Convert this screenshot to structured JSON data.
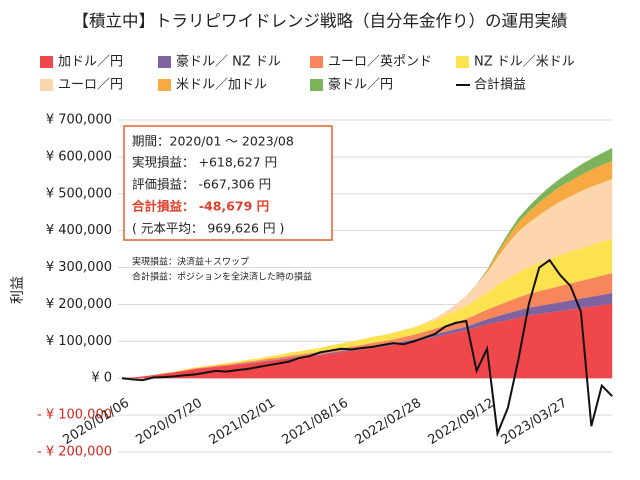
{
  "chart_data": {
    "type": "area",
    "title": "【積立中】トラリピワイドレンジ戦略（自分年金作り）の運用実績",
    "y_label": "利益",
    "categories": [
      "2020/01/06",
      null,
      null,
      null,
      null,
      null,
      null,
      "2020/07/20",
      null,
      null,
      null,
      null,
      null,
      null,
      "2021/02/01",
      null,
      null,
      null,
      null,
      null,
      null,
      "2021/08/16",
      null,
      null,
      null,
      null,
      null,
      null,
      "2022/02/28",
      null,
      null,
      null,
      null,
      null,
      null,
      "2022/09/12",
      null,
      null,
      null,
      null,
      null,
      null,
      "2023/03/27",
      null,
      null,
      null,
      null,
      null
    ],
    "ylim": [
      -200000,
      700000
    ],
    "yticks": [
      {
        "value": -200000,
        "label": "- ¥ 200,000"
      },
      {
        "value": -100000,
        "label": "- ¥ 100,000"
      },
      {
        "value": 0,
        "label": "¥ 0"
      },
      {
        "value": 100000,
        "label": "¥ 100,000"
      },
      {
        "value": 200000,
        "label": "¥ 200,000"
      },
      {
        "value": 300000,
        "label": "¥ 300,000"
      },
      {
        "value": 400000,
        "label": "¥ 400,000"
      },
      {
        "value": 500000,
        "label": "¥ 500,000"
      },
      {
        "value": 600000,
        "label": "¥ 600,000"
      },
      {
        "value": 700000,
        "label": "¥ 700,000"
      }
    ],
    "grid": true,
    "series": [
      {
        "name": "加ドル／円",
        "color": "#f0474b",
        "values": [
          0,
          2000,
          5000,
          8000,
          12000,
          16000,
          20000,
          25000,
          28000,
          31000,
          34000,
          37000,
          40000,
          43000,
          47000,
          50000,
          53000,
          56000,
          59000,
          62000,
          66000,
          70000,
          74000,
          78000,
          82000,
          86000,
          90000,
          95000,
          100000,
          106000,
          112000,
          118000,
          124000,
          130000,
          138000,
          146000,
          152000,
          158000,
          164000,
          170000,
          174000,
          178000,
          182000,
          186000,
          190000,
          194000,
          198000,
          202000
        ]
      },
      {
        "name": "豪ドル／ NZ ドル",
        "color": "#7f63a1",
        "values": [
          0,
          0,
          0,
          0,
          0,
          0,
          0,
          0,
          0,
          0,
          0,
          1000,
          1000,
          1000,
          1000,
          1000,
          2000,
          2000,
          2000,
          2000,
          3000,
          3000,
          3000,
          3000,
          4000,
          4000,
          4000,
          5000,
          5000,
          6000,
          7000,
          8000,
          9000,
          10000,
          12000,
          14000,
          16000,
          18000,
          20000,
          21000,
          22000,
          23000,
          24000,
          25000,
          26000,
          27000,
          28000,
          29000
        ]
      },
      {
        "name": "ユーロ／英ポンド",
        "color": "#f7865a",
        "values": [
          0,
          0,
          0,
          1000,
          1000,
          1000,
          2000,
          2000,
          2000,
          3000,
          3000,
          3000,
          4000,
          4000,
          5000,
          5000,
          6000,
          6000,
          7000,
          7000,
          8000,
          8000,
          9000,
          9000,
          10000,
          10000,
          11000,
          12000,
          13000,
          14000,
          15000,
          17000,
          19000,
          21000,
          23000,
          26000,
          29000,
          32000,
          35000,
          38000,
          40000,
          42000,
          44000,
          46000,
          48000,
          50000,
          52000,
          54000
        ]
      },
      {
        "name": "NZ ドル／米ドル",
        "color": "#fde24f",
        "values": [
          0,
          0,
          0,
          0,
          1000,
          1000,
          2000,
          2000,
          3000,
          3000,
          4000,
          4000,
          5000,
          5000,
          6000,
          7000,
          8000,
          9000,
          10000,
          11000,
          12000,
          13000,
          14000,
          15000,
          16000,
          17000,
          18000,
          19000,
          20000,
          22000,
          24000,
          27000,
          30000,
          35000,
          40000,
          45000,
          55000,
          62000,
          68000,
          72000,
          76000,
          80000,
          84000,
          86000,
          88000,
          90000,
          92000,
          93000
        ]
      },
      {
        "name": "ユーロ／円",
        "color": "#fdd6ae",
        "values": [
          0,
          0,
          0,
          0,
          0,
          0,
          0,
          0,
          0,
          0,
          0,
          0,
          0,
          0,
          0,
          0,
          0,
          0,
          0,
          0,
          0,
          0,
          0,
          0,
          0,
          0,
          0,
          0,
          0,
          2000,
          5000,
          10000,
          18000,
          28000,
          40000,
          55000,
          75000,
          95000,
          110000,
          120000,
          130000,
          138000,
          145000,
          150000,
          155000,
          158000,
          160000,
          162000
        ]
      },
      {
        "name": "米ドル／加ドル",
        "color": "#f8aa42",
        "values": [
          0,
          0,
          0,
          0,
          0,
          0,
          0,
          0,
          0,
          0,
          0,
          0,
          0,
          0,
          0,
          0,
          0,
          0,
          0,
          0,
          0,
          0,
          0,
          0,
          0,
          0,
          0,
          0,
          0,
          0,
          0,
          0,
          0,
          0,
          0,
          5000,
          12000,
          18000,
          25000,
          30000,
          34000,
          38000,
          40000,
          42000,
          44000,
          46000,
          48000,
          50000
        ]
      },
      {
        "name": "豪ドル／円",
        "color": "#7db35a",
        "values": [
          0,
          0,
          0,
          0,
          0,
          0,
          0,
          0,
          0,
          0,
          0,
          0,
          0,
          0,
          0,
          0,
          0,
          0,
          0,
          0,
          0,
          0,
          0,
          0,
          0,
          0,
          0,
          0,
          0,
          0,
          0,
          0,
          0,
          0,
          1000,
          3000,
          6000,
          9000,
          12000,
          15000,
          18000,
          20000,
          22000,
          25000,
          28000,
          30000,
          32000,
          34000
        ]
      },
      {
        "name": "合計損益",
        "type": "line",
        "color": "#111111",
        "values": [
          0,
          -3000,
          -5000,
          2000,
          3000,
          5000,
          8000,
          10000,
          15000,
          20000,
          18000,
          22000,
          25000,
          30000,
          35000,
          40000,
          45000,
          55000,
          60000,
          70000,
          75000,
          80000,
          78000,
          82000,
          85000,
          90000,
          95000,
          92000,
          100000,
          110000,
          120000,
          140000,
          150000,
          155000,
          20000,
          80000,
          -150000,
          -80000,
          50000,
          200000,
          300000,
          320000,
          280000,
          250000,
          180000,
          -130000,
          -20000,
          -48679
        ]
      }
    ],
    "annotations": [
      "期間：2020/01 〜 2023/08",
      "実現損益： +618,627 円",
      "評価損益： -667,306 円",
      "合計損益： -48,679 円",
      "( 元本平均： 969,626 円 )",
      "実現損益：決済益＋スワップ",
      "合計損益：ポジションを全決済した時の損益"
    ]
  }
}
